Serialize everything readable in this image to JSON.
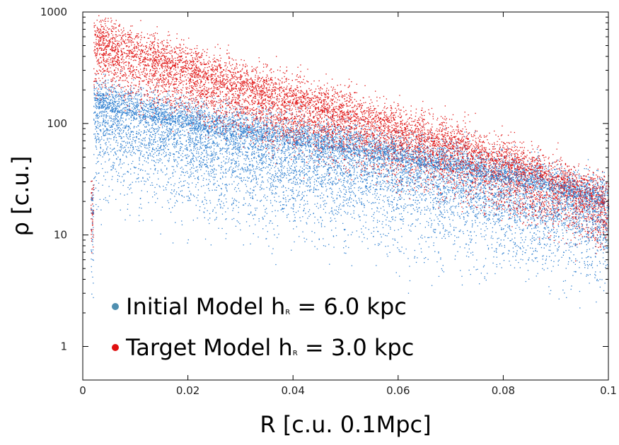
{
  "chart_data": {
    "type": "scatter",
    "xlabel": "R [c.u. 0.1Mpc]",
    "ylabel": "ρ [c.u.]",
    "xlim": [
      0,
      0.1
    ],
    "ylim": [
      0.5,
      1000
    ],
    "yscale": "log",
    "x_ticks": [
      "0",
      "0.02",
      "0.04",
      "0.06",
      "0.08",
      "0.1"
    ],
    "y_ticks": [
      "1",
      "10",
      "100",
      "1000"
    ],
    "legend_placement": "bottom-left",
    "grid": false,
    "series": [
      {
        "name": "Initial Model h",
        "name_suffix": " = 6.0 kpc",
        "subscript": "R",
        "color": "#2e7fd0",
        "legend_color": "#4f8fb0",
        "trend": [
          {
            "x": 0.002,
            "y": 140
          },
          {
            "x": 0.01,
            "y": 115
          },
          {
            "x": 0.02,
            "y": 90
          },
          {
            "x": 0.03,
            "y": 75
          },
          {
            "x": 0.04,
            "y": 65
          },
          {
            "x": 0.05,
            "y": 55
          },
          {
            "x": 0.06,
            "y": 45
          },
          {
            "x": 0.07,
            "y": 38
          },
          {
            "x": 0.08,
            "y": 30
          },
          {
            "x": 0.09,
            "y": 24
          },
          {
            "x": 0.1,
            "y": 18
          }
        ]
      },
      {
        "name": "Target Model h",
        "name_suffix": " = 3.0 kpc",
        "subscript": "R",
        "color": "#e01010",
        "legend_color": "#e01010",
        "trend": [
          {
            "x": 0.002,
            "y": 520
          },
          {
            "x": 0.01,
            "y": 380
          },
          {
            "x": 0.02,
            "y": 280
          },
          {
            "x": 0.03,
            "y": 200
          },
          {
            "x": 0.04,
            "y": 150
          },
          {
            "x": 0.05,
            "y": 110
          },
          {
            "x": 0.06,
            "y": 80
          },
          {
            "x": 0.07,
            "y": 60
          },
          {
            "x": 0.08,
            "y": 40
          },
          {
            "x": 0.09,
            "y": 28
          },
          {
            "x": 0.1,
            "y": 18
          }
        ]
      }
    ]
  }
}
